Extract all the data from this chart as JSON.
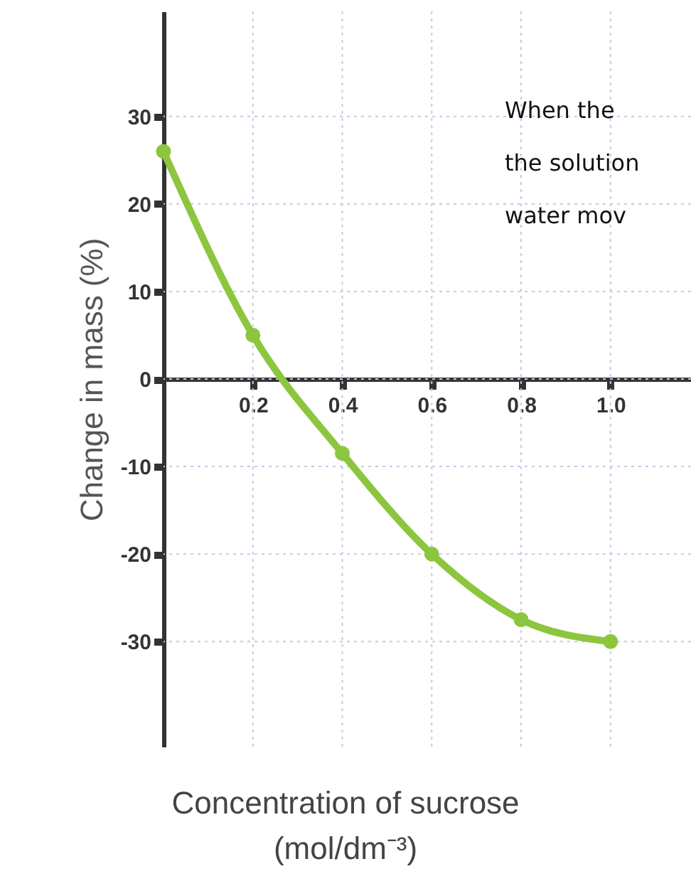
{
  "chart_data": {
    "type": "line",
    "xlabel": "Concentration of sucrose\n(mol/dm⁻³)",
    "ylabel": "Change in mass (%)",
    "x": [
      0,
      0.2,
      0.4,
      0.6,
      0.8,
      1.0
    ],
    "series": [
      {
        "color": "#8cc63e",
        "values": [
          26,
          5,
          -8.5,
          -20,
          -27.5,
          -30
        ]
      }
    ],
    "xlim": [
      0,
      1.18
    ],
    "xticks": [
      {
        "value": 0.2,
        "label": "0.2"
      },
      {
        "value": 0.4,
        "label": "0.4"
      },
      {
        "value": 0.6,
        "label": "0.6"
      },
      {
        "value": 0.8,
        "label": "0.8"
      },
      {
        "value": 1.0,
        "label": "1.0"
      }
    ],
    "ylim": [
      -42,
      42
    ],
    "yticks": [
      -30,
      -20,
      -10,
      0,
      10,
      20,
      30
    ],
    "grid": true,
    "marker": "circle",
    "line_style": "solid",
    "annotations": [
      "When the",
      "the solution",
      "water mov"
    ]
  }
}
